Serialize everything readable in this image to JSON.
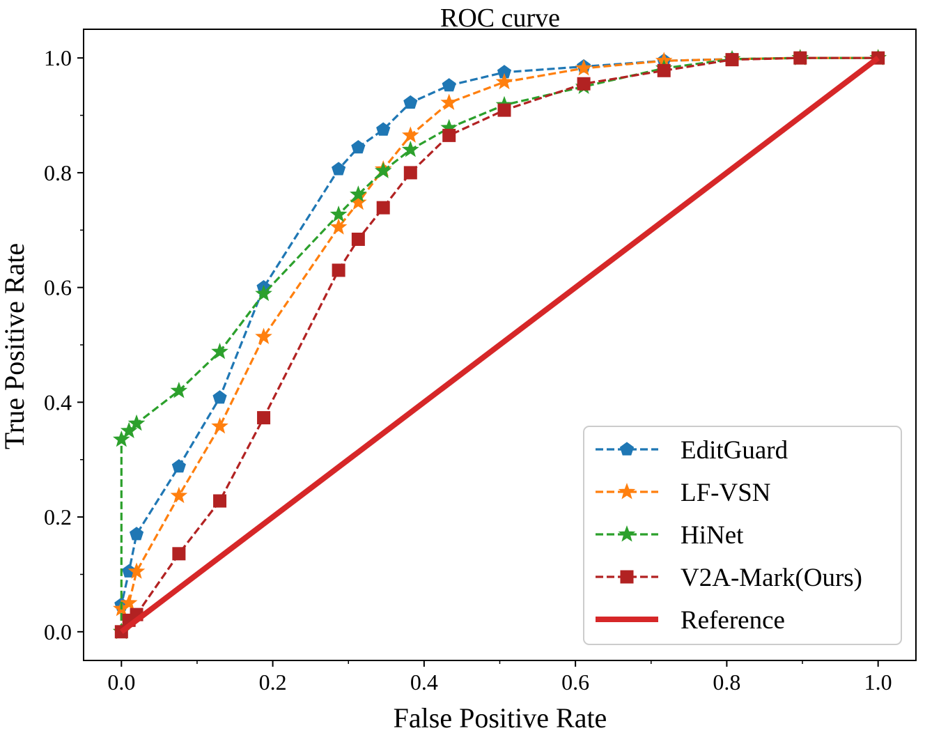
{
  "chart_data": {
    "type": "line",
    "title": "ROC curve",
    "xlabel": "False Positive Rate",
    "ylabel": "True Positive Rate",
    "xlim": [
      -0.05,
      1.05
    ],
    "ylim": [
      -0.05,
      1.05
    ],
    "grid": false,
    "legend_position": "lower-right",
    "x_ticks": [
      0.0,
      0.2,
      0.4,
      0.6,
      0.8,
      1.0
    ],
    "x_tick_labels": [
      "0.0",
      "0.2",
      "0.4",
      "0.6",
      "0.8",
      "1.0"
    ],
    "y_ticks": [
      0.0,
      0.2,
      0.4,
      0.6,
      0.8,
      1.0
    ],
    "y_tick_labels": [
      "0.0",
      "0.2",
      "0.4",
      "0.6",
      "0.8",
      "1.0"
    ],
    "x_minor_ticks": [
      0.1,
      0.3,
      0.5,
      0.7,
      0.9
    ],
    "y_minor_ticks": [
      0.1,
      0.3,
      0.5,
      0.7,
      0.9
    ],
    "series": [
      {
        "name": "EditGuard",
        "color": "#1f77b4",
        "line_style": "dashed",
        "marker": "pentagon",
        "x": [
          0.0,
          0.0,
          0.01,
          0.02,
          0.076,
          0.13,
          0.188,
          0.287,
          0.313,
          0.346,
          0.382,
          0.433,
          0.506,
          0.611,
          0.717,
          0.807,
          0.897,
          1.0
        ],
        "y": [
          0.0,
          0.047,
          0.105,
          0.17,
          0.288,
          0.408,
          0.6,
          0.806,
          0.844,
          0.875,
          0.922,
          0.952,
          0.975,
          0.985,
          0.995,
          0.998,
          1.0,
          1.0
        ]
      },
      {
        "name": "LF-VSN",
        "color": "#ff7f0e",
        "line_style": "dashed",
        "marker": "star",
        "x": [
          0.0,
          0.0,
          0.01,
          0.02,
          0.076,
          0.13,
          0.188,
          0.287,
          0.313,
          0.346,
          0.382,
          0.433,
          0.506,
          0.611,
          0.717,
          0.807,
          0.897,
          1.0
        ],
        "y": [
          0.0,
          0.04,
          0.05,
          0.105,
          0.237,
          0.358,
          0.514,
          0.705,
          0.748,
          0.806,
          0.865,
          0.922,
          0.958,
          0.982,
          0.995,
          0.998,
          1.0,
          1.0
        ]
      },
      {
        "name": "HiNet",
        "color": "#2ca02c",
        "line_style": "dashed",
        "marker": "star",
        "x": [
          0.0,
          0.0,
          0.01,
          0.02,
          0.076,
          0.13,
          0.188,
          0.287,
          0.313,
          0.346,
          0.382,
          0.433,
          0.506,
          0.611,
          0.717,
          0.807,
          0.897,
          1.0
        ],
        "y": [
          0.0,
          0.335,
          0.35,
          0.363,
          0.42,
          0.488,
          0.589,
          0.727,
          0.762,
          0.803,
          0.84,
          0.878,
          0.918,
          0.95,
          0.982,
          0.998,
          1.0,
          1.0
        ]
      },
      {
        "name": "V2A-Mark(Ours)",
        "color": "#b22222",
        "line_style": "dashed",
        "marker": "square",
        "x": [
          0.0,
          0.01,
          0.02,
          0.076,
          0.13,
          0.188,
          0.287,
          0.313,
          0.346,
          0.382,
          0.433,
          0.506,
          0.611,
          0.717,
          0.807,
          0.897,
          1.0
        ],
        "y": [
          0.0,
          0.02,
          0.03,
          0.136,
          0.228,
          0.373,
          0.63,
          0.684,
          0.739,
          0.8,
          0.865,
          0.909,
          0.955,
          0.978,
          0.997,
          1.0,
          1.0
        ]
      },
      {
        "name": "Reference",
        "color": "#d62728",
        "line_style": "solid",
        "marker": "none",
        "x": [
          0.0,
          1.0
        ],
        "y": [
          0.0,
          1.0
        ]
      }
    ]
  }
}
